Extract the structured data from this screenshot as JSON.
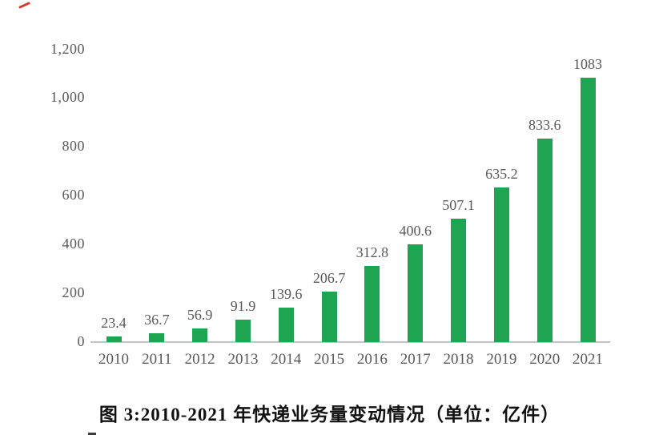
{
  "decorations": {
    "corner_mark_color": "#d23a2e",
    "bottom_cutoff_color": "#3d3d3d"
  },
  "chart_data": {
    "type": "bar",
    "caption": "图 3:2010-2021 年快递业务量变动情况（单位：亿件）",
    "categories": [
      "2010",
      "2011",
      "2012",
      "2013",
      "2014",
      "2015",
      "2016",
      "2017",
      "2018",
      "2019",
      "2020",
      "2021"
    ],
    "values": [
      23.4,
      36.7,
      56.9,
      91.9,
      139.6,
      206.7,
      312.8,
      400.6,
      507.1,
      635.2,
      833.6,
      1083
    ],
    "value_labels": [
      "23.4",
      "36.7",
      "56.9",
      "91.9",
      "139.6",
      "206.7",
      "312.8",
      "400.6",
      "507.1",
      "635.2",
      "833.6",
      "1083"
    ],
    "yticks": [
      {
        "value": 0,
        "label": "0"
      },
      {
        "value": 200,
        "label": "200"
      },
      {
        "value": 400,
        "label": "400"
      },
      {
        "value": 600,
        "label": "600"
      },
      {
        "value": 800,
        "label": "800"
      },
      {
        "value": 1000,
        "label": "1,000"
      },
      {
        "value": 1200,
        "label": "1,200"
      }
    ],
    "ylim": [
      0,
      1200
    ],
    "grid": false,
    "legend": false,
    "bar_color": "#1fa551",
    "axis_line_color": "#c2c2c2",
    "label_color": "#595959",
    "unit": "亿件"
  }
}
